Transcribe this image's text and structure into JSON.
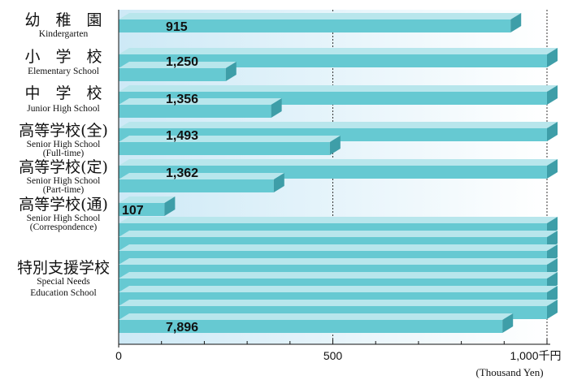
{
  "chart_data": {
    "type": "bar",
    "orientation": "horizontal",
    "xlim": [
      0,
      1000
    ],
    "x_ticks": [
      0,
      500,
      1000
    ],
    "x_tick_labels": [
      "0",
      "500",
      "1,000千円"
    ],
    "x_unit_label": "(Thousand  Yen)",
    "categories": [
      {
        "jp": "幼　稚　園",
        "en": [
          "Kindergarten"
        ],
        "value": 915,
        "label": "915"
      },
      {
        "jp": "小　学　校",
        "en": [
          "Elementary  School"
        ],
        "value": 1250,
        "label": "1,250"
      },
      {
        "jp": "中　学　校",
        "en": [
          "Junior  High  School"
        ],
        "value": 1356,
        "label": "1,356"
      },
      {
        "jp": "高等学校(全)",
        "en": [
          "Senior  High  School",
          "(Full-time)"
        ],
        "value": 1493,
        "label": "1,493"
      },
      {
        "jp": "高等学校(定)",
        "en": [
          "Senior  High  School",
          "(Part-time)"
        ],
        "value": 1362,
        "label": "1,362"
      },
      {
        "jp": "高等学校(通)",
        "en": [
          "Senior  High  School",
          "(Correspondence)"
        ],
        "value": 107,
        "label": "107"
      },
      {
        "jp": "特別支援学校",
        "en": [
          "Special Needs",
          "Education School"
        ],
        "value": 7896,
        "label": "7,896"
      }
    ],
    "grid_lines": [
      500,
      1000
    ],
    "colors": {
      "bar_front": "#66c9d2",
      "bar_top": "#b8e6ec",
      "bar_side": "#3e9ea8",
      "bg_start": "#cde9f6",
      "bg_end": "#ffffff"
    }
  }
}
